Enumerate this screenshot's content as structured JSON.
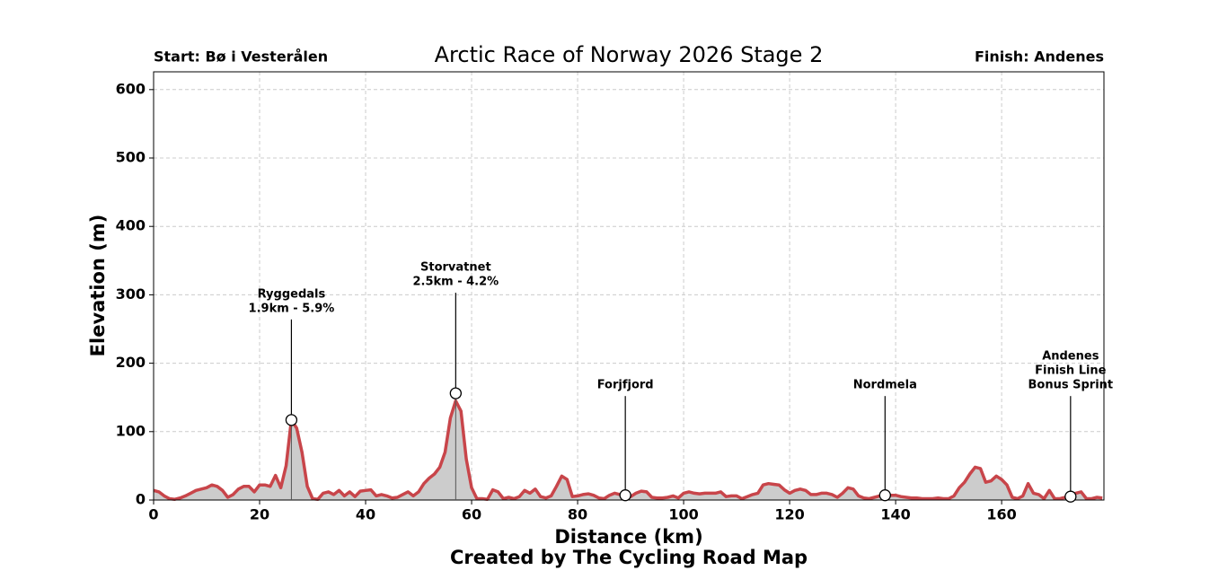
{
  "chart_data": {
    "type": "area",
    "title": "Arctic Race of Norway 2026 Stage 2",
    "start_label": "Start: Bø i Vesterålen",
    "finish_label": "Finish: Andenes",
    "xlabel": "Distance (km)",
    "ylabel": "Elevation (m)",
    "credit": "Created by The Cycling Road Map",
    "xlim": [
      0,
      179.3
    ],
    "ylim": [
      0,
      626
    ],
    "xticks": [
      0,
      20,
      40,
      60,
      80,
      100,
      120,
      140,
      160
    ],
    "yticks": [
      0,
      100,
      200,
      300,
      400,
      500,
      600
    ],
    "grid": true,
    "line_color": "#c8454a",
    "fill_color": "#cccccc",
    "x": [
      0,
      1,
      2,
      3,
      4,
      5,
      6,
      7,
      8,
      9,
      10,
      11,
      12,
      13,
      14,
      15,
      16,
      17,
      18,
      19,
      20,
      21,
      22,
      23,
      24,
      25,
      26,
      27,
      28,
      29,
      30,
      31,
      32,
      33,
      34,
      35,
      36,
      37,
      38,
      39,
      40,
      41,
      42,
      43,
      44,
      45,
      46,
      47,
      48,
      49,
      50,
      51,
      52,
      53,
      54,
      55,
      56,
      57,
      58,
      59,
      60,
      61,
      62,
      63,
      64,
      65,
      66,
      67,
      68,
      69,
      70,
      71,
      72,
      73,
      74,
      75,
      76,
      77,
      78,
      79,
      80,
      81,
      82,
      83,
      84,
      85,
      86,
      87,
      88,
      89,
      90,
      91,
      92,
      93,
      94,
      95,
      96,
      97,
      98,
      99,
      100,
      101,
      102,
      103,
      104,
      105,
      106,
      107,
      108,
      109,
      110,
      111,
      112,
      113,
      114,
      115,
      116,
      117,
      118,
      119,
      120,
      121,
      122,
      123,
      124,
      125,
      126,
      127,
      128,
      129,
      130,
      131,
      132,
      133,
      134,
      135,
      136,
      137,
      138,
      139,
      140,
      141,
      142,
      143,
      144,
      145,
      146,
      147,
      148,
      149,
      150,
      151,
      152,
      153,
      154,
      155,
      156,
      157,
      158,
      159,
      160,
      161,
      162,
      163,
      164,
      165,
      166,
      167,
      168,
      169,
      170,
      171,
      172,
      173,
      174,
      175,
      176,
      177,
      178,
      179
    ],
    "values": [
      14,
      12,
      6,
      2,
      1,
      3,
      6,
      10,
      14,
      16,
      18,
      22,
      20,
      14,
      4,
      8,
      16,
      20,
      20,
      12,
      22,
      22,
      20,
      36,
      18,
      50,
      117,
      105,
      70,
      20,
      2,
      1,
      10,
      12,
      8,
      14,
      6,
      12,
      5,
      13,
      14,
      15,
      6,
      8,
      6,
      3,
      4,
      8,
      12,
      6,
      12,
      24,
      32,
      38,
      48,
      70,
      120,
      145,
      130,
      60,
      18,
      2,
      2,
      1,
      15,
      12,
      2,
      4,
      2,
      5,
      14,
      10,
      16,
      5,
      3,
      6,
      20,
      35,
      30,
      5,
      6,
      8,
      9,
      7,
      3,
      2,
      7,
      10,
      8,
      7,
      5,
      10,
      13,
      12,
      4,
      3,
      3,
      4,
      6,
      3,
      10,
      12,
      10,
      9,
      10,
      10,
      10,
      12,
      5,
      6,
      6,
      2,
      5,
      8,
      10,
      22,
      24,
      23,
      22,
      15,
      10,
      14,
      16,
      14,
      8,
      8,
      10,
      10,
      8,
      4,
      10,
      18,
      16,
      6,
      3,
      2,
      4,
      6,
      6,
      7,
      7,
      5,
      4,
      3,
      3,
      2,
      2,
      2,
      3,
      2,
      2,
      6,
      18,
      26,
      38,
      48,
      46,
      26,
      28,
      35,
      30,
      22,
      4,
      2,
      6,
      24,
      10,
      8,
      2,
      14,
      2,
      2,
      4,
      5,
      10,
      12,
      2,
      2,
      4,
      3
    ],
    "annotations": [
      {
        "x": 26,
        "y": 117,
        "lines": [
          "Ryggedals",
          "1.9km - 5.9%"
        ]
      },
      {
        "x": 57,
        "y": 156,
        "lines": [
          "Storvatnet",
          "2.5km - 4.2%"
        ]
      },
      {
        "x": 89,
        "y": 7,
        "lines": [
          "Forjfjord"
        ]
      },
      {
        "x": 138,
        "y": 7,
        "lines": [
          "Nordmela"
        ]
      },
      {
        "x": 173,
        "y": 5,
        "lines": [
          "Andenes",
          "Finish Line",
          "Bonus Sprint"
        ]
      }
    ]
  }
}
